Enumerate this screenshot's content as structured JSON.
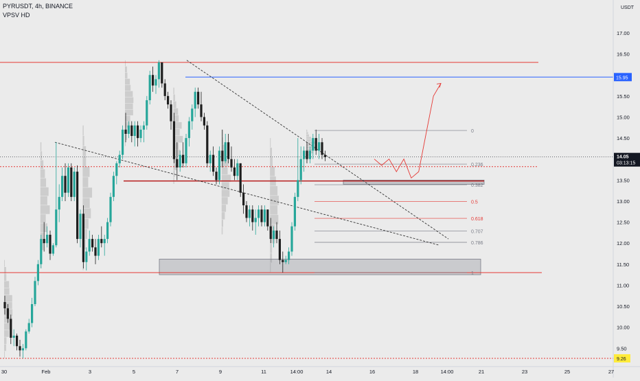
{
  "header": {
    "symbol_line": "PYRUSDT, 4h, BINANCE",
    "indicator": "VPSV HD"
  },
  "price_axis": {
    "currency": "USDT",
    "ticks": [
      "17.00",
      "16.50",
      "16.00",
      "15.50",
      "15.00",
      "14.50",
      "14.00",
      "13.50",
      "13.00",
      "12.50",
      "12.00",
      "11.50",
      "11.00",
      "10.50",
      "10.00",
      "9.50"
    ],
    "current_price_label": "14.05",
    "countdown_label": "03:13:15",
    "blue_level_label": "15.95",
    "yellow_level_label": "9.26"
  },
  "time_axis": {
    "labels": [
      "30",
      "Feb",
      "3",
      "5",
      "7",
      "9",
      "11",
      "14:00",
      "14",
      "16",
      "18",
      "14:00",
      "21",
      "23",
      "25",
      "27"
    ]
  },
  "chart_data": {
    "type": "candlestick",
    "symbol": "PYRUSDT",
    "timeframe": "4h",
    "exchange": "BINANCE",
    "ylim": [
      9.15,
      17.55
    ],
    "y_ticks": [
      9.5,
      10,
      10.5,
      11,
      11.5,
      12,
      12.5,
      13,
      13.5,
      14,
      14.5,
      15,
      15.5,
      16,
      16.5,
      17
    ],
    "current_price": 14.05,
    "candles_ohlc": [
      [
        10.6,
        10.75,
        10.3,
        10.45
      ],
      [
        10.45,
        10.55,
        10.1,
        10.2
      ],
      [
        10.2,
        10.3,
        9.6,
        9.75
      ],
      [
        9.75,
        9.95,
        9.55,
        9.8
      ],
      [
        9.8,
        9.85,
        9.45,
        9.55
      ],
      [
        9.55,
        9.7,
        9.3,
        9.45
      ],
      [
        9.45,
        9.6,
        9.26,
        9.5
      ],
      [
        9.5,
        9.95,
        9.45,
        9.9
      ],
      [
        9.9,
        10.2,
        9.85,
        10.1
      ],
      [
        10.1,
        10.7,
        10.0,
        10.55
      ],
      [
        10.55,
        11.2,
        10.5,
        11.1
      ],
      [
        11.1,
        11.6,
        11.0,
        11.5
      ],
      [
        11.5,
        12.2,
        11.4,
        12.1
      ],
      [
        12.1,
        12.5,
        11.8,
        12.0
      ],
      [
        12.0,
        12.4,
        11.9,
        12.2
      ],
      [
        12.2,
        12.3,
        11.6,
        11.75
      ],
      [
        11.75,
        12.0,
        11.7,
        11.95
      ],
      [
        11.95,
        14.4,
        11.9,
        12.8
      ],
      [
        12.8,
        13.4,
        12.5,
        13.1
      ],
      [
        13.1,
        13.8,
        13.0,
        13.6
      ],
      [
        13.6,
        13.9,
        13.0,
        13.2
      ],
      [
        13.2,
        13.9,
        13.1,
        13.8
      ],
      [
        13.8,
        13.9,
        13.0,
        13.1
      ],
      [
        13.1,
        13.8,
        13.0,
        13.7
      ],
      [
        13.7,
        13.85,
        12.0,
        12.1
      ],
      [
        12.1,
        12.8,
        11.9,
        12.7
      ],
      [
        12.7,
        12.9,
        11.4,
        11.55
      ],
      [
        11.55,
        11.9,
        11.35,
        11.8
      ],
      [
        11.8,
        12.3,
        11.7,
        12.1
      ],
      [
        12.1,
        12.2,
        11.8,
        11.9
      ],
      [
        11.9,
        12.1,
        11.5,
        11.7
      ],
      [
        11.7,
        12.2,
        11.6,
        12.1
      ],
      [
        12.1,
        12.4,
        11.9,
        12.0
      ],
      [
        12.0,
        12.2,
        11.7,
        12.1
      ],
      [
        12.1,
        12.6,
        12.0,
        12.5
      ],
      [
        12.5,
        13.2,
        12.4,
        13.1
      ],
      [
        13.1,
        13.7,
        13.0,
        13.6
      ],
      [
        13.6,
        13.95,
        13.4,
        13.9
      ],
      [
        13.9,
        14.2,
        13.8,
        14.1
      ],
      [
        14.1,
        14.8,
        14.0,
        14.7
      ],
      [
        14.7,
        15.1,
        14.4,
        14.6
      ],
      [
        14.6,
        14.9,
        14.5,
        14.8
      ],
      [
        14.8,
        14.9,
        14.4,
        14.55
      ],
      [
        14.55,
        14.9,
        14.3,
        14.8
      ],
      [
        14.8,
        14.9,
        14.3,
        14.5
      ],
      [
        14.5,
        14.8,
        14.4,
        14.7
      ],
      [
        14.7,
        14.9,
        14.4,
        14.8
      ],
      [
        14.8,
        15.5,
        14.7,
        15.4
      ],
      [
        15.4,
        16.1,
        15.3,
        16.0
      ],
      [
        16.0,
        16.2,
        15.6,
        15.75
      ],
      [
        15.75,
        16.0,
        15.55,
        15.9
      ],
      [
        15.9,
        16.35,
        15.7,
        16.3
      ],
      [
        16.3,
        16.3,
        15.7,
        15.8
      ],
      [
        15.8,
        15.9,
        15.4,
        15.5
      ],
      [
        15.5,
        15.6,
        15.2,
        15.3
      ],
      [
        15.3,
        15.4,
        14.7,
        14.9
      ],
      [
        14.9,
        15.1,
        13.9,
        14.0
      ],
      [
        14.0,
        14.4,
        13.5,
        13.8
      ],
      [
        13.8,
        14.2,
        13.7,
        14.1
      ],
      [
        14.1,
        14.4,
        13.8,
        13.9
      ],
      [
        13.9,
        14.6,
        13.8,
        14.5
      ],
      [
        14.5,
        15.0,
        14.3,
        14.9
      ],
      [
        14.9,
        15.3,
        14.7,
        15.2
      ],
      [
        15.2,
        15.7,
        15.0,
        15.6
      ],
      [
        15.6,
        15.7,
        15.2,
        15.3
      ],
      [
        15.3,
        15.6,
        14.9,
        15.0
      ],
      [
        15.0,
        15.1,
        14.7,
        14.8
      ],
      [
        14.8,
        14.9,
        13.8,
        13.9
      ],
      [
        13.9,
        14.2,
        13.7,
        14.1
      ],
      [
        14.1,
        14.3,
        13.6,
        13.7
      ],
      [
        13.7,
        13.8,
        13.4,
        13.5
      ],
      [
        13.5,
        14.3,
        13.4,
        14.2
      ],
      [
        14.2,
        14.7,
        13.8,
        13.95
      ],
      [
        13.95,
        14.6,
        13.9,
        14.4
      ],
      [
        14.4,
        14.6,
        13.9,
        14.0
      ],
      [
        14.0,
        14.3,
        13.7,
        13.8
      ],
      [
        13.8,
        14.0,
        13.5,
        13.6
      ],
      [
        13.6,
        14.0,
        13.5,
        13.9
      ],
      [
        13.9,
        13.9,
        13.1,
        13.2
      ],
      [
        13.2,
        13.4,
        12.7,
        12.9
      ],
      [
        12.9,
        13.0,
        12.5,
        12.6
      ],
      [
        12.6,
        12.9,
        12.4,
        12.8
      ],
      [
        12.8,
        12.9,
        12.3,
        12.5
      ],
      [
        12.5,
        12.8,
        12.2,
        12.6
      ],
      [
        12.6,
        12.9,
        12.4,
        12.8
      ],
      [
        12.8,
        12.9,
        12.4,
        12.5
      ],
      [
        12.5,
        12.9,
        12.4,
        12.8
      ],
      [
        12.8,
        12.8,
        12.3,
        12.4
      ],
      [
        12.4,
        12.6,
        12.0,
        12.1
      ],
      [
        12.1,
        12.4,
        11.9,
        12.3
      ],
      [
        12.3,
        12.5,
        12.0,
        12.1
      ],
      [
        12.1,
        12.3,
        11.5,
        11.6
      ],
      [
        11.6,
        11.8,
        11.3,
        11.55
      ],
      [
        11.55,
        11.7,
        11.5,
        11.6
      ],
      [
        11.6,
        11.9,
        11.5,
        11.8
      ],
      [
        11.8,
        12.5,
        11.7,
        12.4
      ],
      [
        12.4,
        13.2,
        12.3,
        13.1
      ],
      [
        13.1,
        14.5,
        13.0,
        13.5
      ],
      [
        13.5,
        14.3,
        13.4,
        14.0
      ],
      [
        14.0,
        14.3,
        13.7,
        14.2
      ],
      [
        14.2,
        14.4,
        13.9,
        14.0
      ],
      [
        14.0,
        14.3,
        13.9,
        14.2
      ],
      [
        14.2,
        14.6,
        14.0,
        14.5
      ],
      [
        14.5,
        14.7,
        14.1,
        14.2
      ],
      [
        14.2,
        14.6,
        14.0,
        14.4
      ],
      [
        14.4,
        14.5,
        14.0,
        14.1
      ],
      [
        14.1,
        14.2,
        13.95,
        14.05
      ]
    ],
    "horizontal_levels": [
      {
        "price": 16.3,
        "color": "#e53935"
      },
      {
        "price": 15.95,
        "color": "#2962ff"
      },
      {
        "price": 13.82,
        "color": "#e53935",
        "style": "dotted"
      },
      {
        "price": 13.48,
        "color": "#b71c1c"
      },
      {
        "price": 11.3,
        "color": "#e53935"
      },
      {
        "price": 9.26,
        "color": "#e53935",
        "style": "dotted"
      }
    ],
    "fib_retracement": {
      "high": 14.68,
      "low": 11.3,
      "levels": [
        {
          "ratio": "0",
          "price": 14.68,
          "color": "#787b86"
        },
        {
          "ratio": "0.236",
          "price": 13.88,
          "color": "#787b86"
        },
        {
          "ratio": "0.382",
          "price": 13.39,
          "color": "#787b86"
        },
        {
          "ratio": "0.5",
          "price": 12.99,
          "color": "#e53935"
        },
        {
          "ratio": "0.618",
          "price": 12.59,
          "color": "#e53935"
        },
        {
          "ratio": "0.707",
          "price": 12.29,
          "color": "#787b86"
        },
        {
          "ratio": "0.786",
          "price": 12.02,
          "color": "#787b86"
        },
        {
          "ratio": "1",
          "price": 11.3,
          "color": "#787b86"
        }
      ]
    },
    "zones": [
      {
        "top": 11.62,
        "bottom": 11.25
      },
      {
        "top": 13.5,
        "bottom": 13.4
      }
    ],
    "trendlines": [
      {
        "from_price": 16.35,
        "to_price": 12.1,
        "style": "dashed"
      },
      {
        "from_price": 14.4,
        "to_price": 11.95,
        "style": "dashed"
      }
    ],
    "projection_path": [
      14.0,
      13.85,
      14.0,
      13.7,
      14.0,
      13.55,
      13.7,
      14.6,
      15.5,
      15.8
    ]
  },
  "colors": {
    "up": "#26a69a",
    "down": "#1e1e1e",
    "volume_profile": "#b4b4b4",
    "background": "#ebebeb",
    "current_price_bg": "#131722",
    "blue_label_bg": "#2962ff",
    "yellow_label_bg": "#ffeb3b"
  }
}
